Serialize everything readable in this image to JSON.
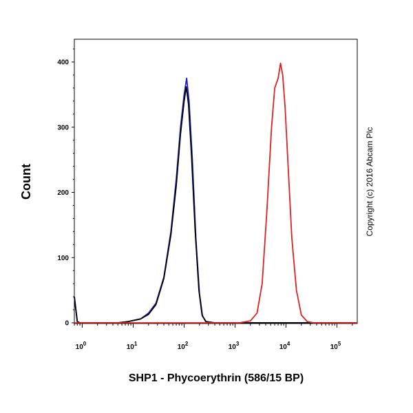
{
  "chart_data": {
    "type": "line",
    "title": "",
    "xlabel": "SHP1 - Phycoerythrin (586/15 BP)",
    "ylabel": "Count",
    "x_scale": "log",
    "xlim": [
      0.7,
      250000
    ],
    "ylim": [
      0,
      430
    ],
    "x_ticks": [
      {
        "value": 1,
        "base": "10",
        "exp": "0"
      },
      {
        "value": 10,
        "base": "10",
        "exp": "1"
      },
      {
        "value": 100,
        "base": "10",
        "exp": "2"
      },
      {
        "value": 1000,
        "base": "10",
        "exp": "3"
      },
      {
        "value": 10000,
        "base": "10",
        "exp": "4"
      },
      {
        "value": 100000,
        "base": "10",
        "exp": "5"
      }
    ],
    "y_ticks": [
      0,
      100,
      200,
      300,
      400
    ],
    "grid": false,
    "annotation": "Copyright (c) 2016 Abcam Plc",
    "series": [
      {
        "color": "#1f1fd0",
        "points": [
          [
            0.7,
            40
          ],
          [
            0.8,
            2
          ],
          [
            0.9,
            0
          ],
          [
            5,
            0
          ],
          [
            8,
            2
          ],
          [
            14,
            6
          ],
          [
            20,
            15
          ],
          [
            28,
            30
          ],
          [
            40,
            70
          ],
          [
            55,
            140
          ],
          [
            70,
            220
          ],
          [
            85,
            300
          ],
          [
            100,
            350
          ],
          [
            112,
            375
          ],
          [
            125,
            340
          ],
          [
            145,
            250
          ],
          [
            170,
            130
          ],
          [
            200,
            45
          ],
          [
            230,
            10
          ],
          [
            270,
            2
          ],
          [
            400,
            0
          ],
          [
            250000,
            0
          ]
        ]
      },
      {
        "color": "#000000",
        "points": [
          [
            0.7,
            40
          ],
          [
            0.8,
            2
          ],
          [
            0.9,
            0
          ],
          [
            5,
            0
          ],
          [
            8,
            2
          ],
          [
            14,
            6
          ],
          [
            20,
            13
          ],
          [
            28,
            28
          ],
          [
            40,
            68
          ],
          [
            55,
            135
          ],
          [
            70,
            210
          ],
          [
            85,
            290
          ],
          [
            100,
            340
          ],
          [
            110,
            362
          ],
          [
            122,
            335
          ],
          [
            140,
            255
          ],
          [
            165,
            140
          ],
          [
            195,
            50
          ],
          [
            225,
            12
          ],
          [
            265,
            2
          ],
          [
            400,
            0
          ],
          [
            250000,
            0
          ]
        ]
      },
      {
        "color": "#e02020",
        "points": [
          [
            0.7,
            0
          ],
          [
            1200,
            0
          ],
          [
            2000,
            3
          ],
          [
            2700,
            15
          ],
          [
            3400,
            60
          ],
          [
            4200,
            170
          ],
          [
            5200,
            300
          ],
          [
            6000,
            360
          ],
          [
            7000,
            375
          ],
          [
            7800,
            398
          ],
          [
            8600,
            380
          ],
          [
            9600,
            330
          ],
          [
            11000,
            240
          ],
          [
            13000,
            130
          ],
          [
            16000,
            50
          ],
          [
            20000,
            12
          ],
          [
            26000,
            2
          ],
          [
            35000,
            0
          ],
          [
            250000,
            0
          ]
        ]
      }
    ]
  }
}
